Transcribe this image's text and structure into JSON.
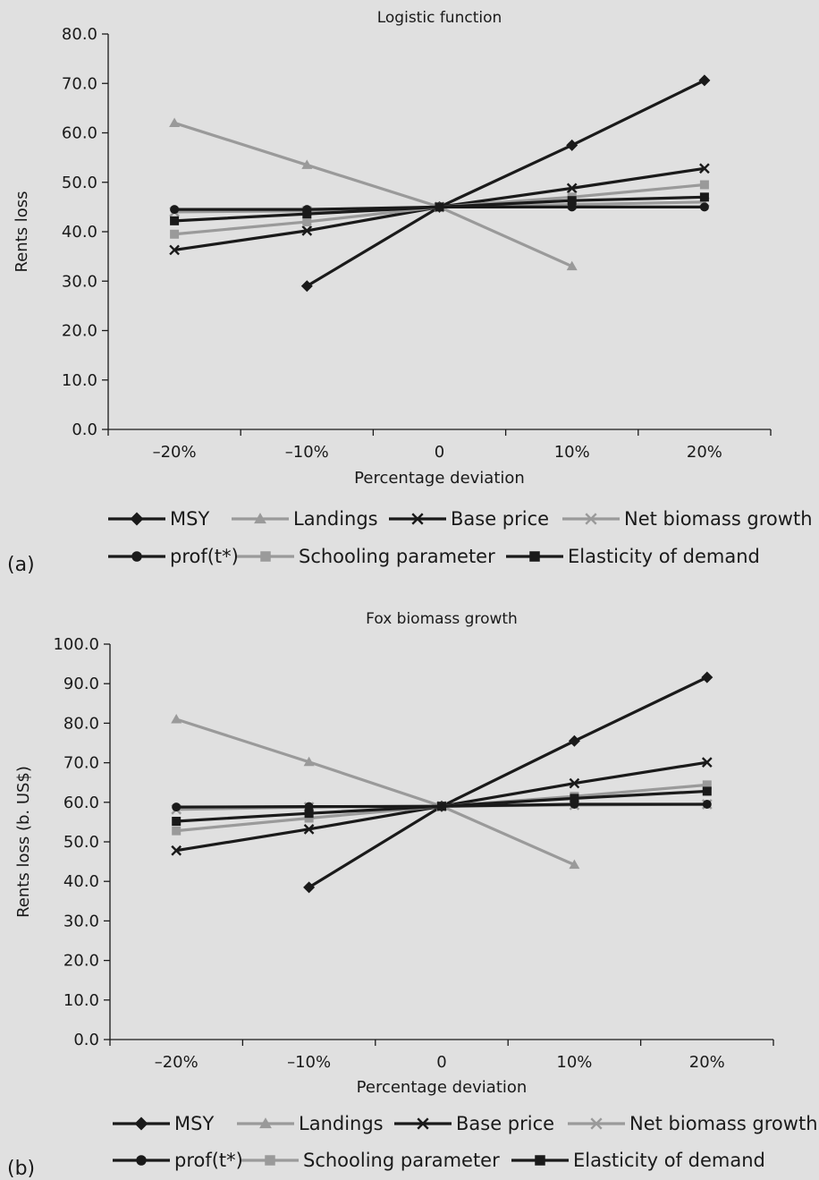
{
  "colors": {
    "dark": "#1a1a1a",
    "light": "#9a9a9a",
    "background": "#e0e0e0"
  },
  "chart_data": [
    {
      "type": "line",
      "panel": "(a)",
      "title": "Logistic function",
      "xlabel": "Percentage deviation",
      "ylabel": "Rents loss",
      "categories": [
        "–20%",
        "–10%",
        "0",
        "10%",
        "20%"
      ],
      "ylim": [
        0,
        80
      ],
      "ystep": 10,
      "ytick_labels": [
        "0.0",
        "10.0",
        "20.0",
        "30.0",
        "40.0",
        "50.0",
        "60.0",
        "70.0",
        "80.0"
      ],
      "grid": false,
      "legend_position": "bottom",
      "series": [
        {
          "name": "MSY",
          "marker": "diamond",
          "color": "#1a1a1a",
          "values": [
            null,
            29.0,
            45.0,
            57.5,
            70.6
          ]
        },
        {
          "name": "Landings",
          "marker": "triangle",
          "color": "#9a9a9a",
          "values": [
            62.0,
            53.5,
            45.0,
            33.0,
            null
          ]
        },
        {
          "name": "Base price",
          "marker": "x",
          "color": "#1a1a1a",
          "values": [
            36.3,
            40.2,
            45.0,
            48.8,
            52.8
          ]
        },
        {
          "name": "Net biomass growth",
          "marker": "x",
          "color": "#9a9a9a",
          "values": [
            44.0,
            44.2,
            45.0,
            45.5,
            46.0
          ]
        },
        {
          "name": "prof(t*)",
          "marker": "circle",
          "color": "#1a1a1a",
          "values": [
            44.5,
            44.5,
            45.0,
            45.0,
            45.0
          ]
        },
        {
          "name": "Schooling parameter",
          "marker": "square",
          "color": "#9a9a9a",
          "values": [
            39.5,
            42.0,
            45.0,
            47.0,
            49.5
          ]
        },
        {
          "name": "Elasticity of demand",
          "marker": "square",
          "color": "#1a1a1a",
          "values": [
            42.2,
            43.6,
            45.0,
            46.3,
            47.0
          ]
        }
      ]
    },
    {
      "type": "line",
      "panel": "(b)",
      "title": "Fox biomass growth",
      "xlabel": "Percentage deviation",
      "ylabel": "Rents loss (b. US$)",
      "categories": [
        "–20%",
        "–10%",
        "0",
        "10%",
        "20%"
      ],
      "ylim": [
        0,
        100
      ],
      "ystep": 10,
      "ytick_labels": [
        "0.0",
        "10.0",
        "20.0",
        "30.0",
        "40.0",
        "50.0",
        "60.0",
        "70.0",
        "80.0",
        "90.0",
        "100.0"
      ],
      "grid": false,
      "legend_position": "bottom",
      "series": [
        {
          "name": "MSY",
          "marker": "diamond",
          "color": "#1a1a1a",
          "values": [
            null,
            38.5,
            59.0,
            75.5,
            91.6
          ]
        },
        {
          "name": "Landings",
          "marker": "triangle",
          "color": "#9a9a9a",
          "values": [
            81.0,
            70.2,
            59.0,
            44.2,
            null
          ]
        },
        {
          "name": "Base price",
          "marker": "x",
          "color": "#1a1a1a",
          "values": [
            47.8,
            53.2,
            59.0,
            64.8,
            70.1
          ]
        },
        {
          "name": "Net biomass growth",
          "marker": "x",
          "color": "#9a9a9a",
          "values": [
            58.2,
            58.8,
            59.0,
            59.3,
            59.5
          ]
        },
        {
          "name": "prof(t*)",
          "marker": "circle",
          "color": "#1a1a1a",
          "values": [
            58.8,
            58.9,
            59.0,
            59.5,
            59.5
          ]
        },
        {
          "name": "Schooling parameter",
          "marker": "square",
          "color": "#9a9a9a",
          "values": [
            52.8,
            56.0,
            59.0,
            61.5,
            64.4
          ]
        },
        {
          "name": "Elasticity of demand",
          "marker": "square",
          "color": "#1a1a1a",
          "values": [
            55.2,
            57.2,
            59.0,
            61.0,
            62.8
          ]
        }
      ]
    }
  ]
}
